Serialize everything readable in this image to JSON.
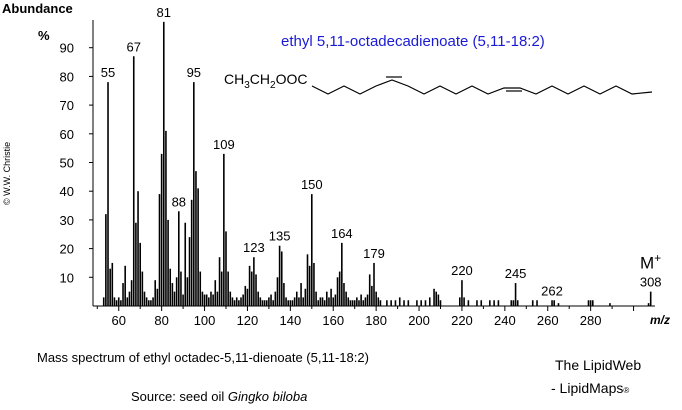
{
  "chart_data": {
    "type": "bar",
    "title": "ethyl 5,11-octadecadienoate  (5,11-18:2)",
    "structure_formula": "CH3CH2OOC",
    "ylabel": "Abundance",
    "yunit": "%",
    "xlabel": "m/z",
    "xlim": [
      48,
      310
    ],
    "ylim": [
      0,
      100
    ],
    "xticks": [
      60,
      80,
      100,
      120,
      140,
      160,
      180,
      200,
      220,
      240,
      260,
      280
    ],
    "yticks": [
      10,
      20,
      30,
      40,
      50,
      60,
      70,
      80,
      90
    ],
    "molecular_ion_label": "M",
    "molecular_ion_sup": "+",
    "labeled_peaks": [
      {
        "mz": 55,
        "value": 78,
        "label": "55"
      },
      {
        "mz": 67,
        "value": 87,
        "label": "67"
      },
      {
        "mz": 81,
        "value": 99,
        "label": "81"
      },
      {
        "mz": 88,
        "value": 33,
        "label": "88"
      },
      {
        "mz": 95,
        "value": 78,
        "label": "95"
      },
      {
        "mz": 109,
        "value": 53,
        "label": "109"
      },
      {
        "mz": 123,
        "value": 17,
        "label": "123"
      },
      {
        "mz": 135,
        "value": 21,
        "label": "135"
      },
      {
        "mz": 150,
        "value": 39,
        "label": "150"
      },
      {
        "mz": 164,
        "value": 22,
        "label": "164"
      },
      {
        "mz": 179,
        "value": 15,
        "label": "179"
      },
      {
        "mz": 220,
        "value": 9,
        "label": "220"
      },
      {
        "mz": 245,
        "value": 8,
        "label": "245"
      },
      {
        "mz": 262,
        "value": 2,
        "label": "262"
      },
      {
        "mz": 308,
        "value": 5,
        "label": "308"
      }
    ],
    "peaks": [
      [
        53,
        3
      ],
      [
        54,
        32
      ],
      [
        56,
        13
      ],
      [
        57,
        15
      ],
      [
        58,
        3
      ],
      [
        59,
        2
      ],
      [
        60,
        3
      ],
      [
        61,
        2
      ],
      [
        62,
        8
      ],
      [
        63,
        14
      ],
      [
        64,
        3
      ],
      [
        65,
        5
      ],
      [
        66,
        9
      ],
      [
        68,
        29
      ],
      [
        69,
        40
      ],
      [
        70,
        22
      ],
      [
        71,
        12
      ],
      [
        72,
        5
      ],
      [
        73,
        3
      ],
      [
        74,
        2
      ],
      [
        75,
        2
      ],
      [
        76,
        3
      ],
      [
        77,
        9
      ],
      [
        78,
        6
      ],
      [
        79,
        39
      ],
      [
        80,
        53
      ],
      [
        82,
        61
      ],
      [
        83,
        30
      ],
      [
        84,
        13
      ],
      [
        85,
        8
      ],
      [
        86,
        5
      ],
      [
        87,
        10
      ],
      [
        89,
        12
      ],
      [
        90,
        4
      ],
      [
        91,
        29
      ],
      [
        92,
        10
      ],
      [
        93,
        24
      ],
      [
        94,
        37
      ],
      [
        96,
        47
      ],
      [
        97,
        41
      ],
      [
        98,
        12
      ],
      [
        99,
        5
      ],
      [
        100,
        4
      ],
      [
        101,
        4
      ],
      [
        102,
        3
      ],
      [
        103,
        5
      ],
      [
        104,
        4
      ],
      [
        105,
        9
      ],
      [
        106,
        5
      ],
      [
        107,
        17
      ],
      [
        108,
        12
      ],
      [
        110,
        26
      ],
      [
        111,
        12
      ],
      [
        112,
        5
      ],
      [
        113,
        3
      ],
      [
        114,
        2
      ],
      [
        115,
        3
      ],
      [
        116,
        2
      ],
      [
        117,
        3
      ],
      [
        118,
        4
      ],
      [
        119,
        7
      ],
      [
        120,
        6
      ],
      [
        121,
        14
      ],
      [
        122,
        12
      ],
      [
        124,
        11
      ],
      [
        125,
        5
      ],
      [
        126,
        3
      ],
      [
        127,
        2
      ],
      [
        128,
        2
      ],
      [
        129,
        2
      ],
      [
        130,
        3
      ],
      [
        131,
        4
      ],
      [
        132,
        2
      ],
      [
        133,
        5
      ],
      [
        134,
        10
      ],
      [
        136,
        19
      ],
      [
        137,
        8
      ],
      [
        138,
        3
      ],
      [
        139,
        2
      ],
      [
        140,
        2
      ],
      [
        141,
        2
      ],
      [
        142,
        3
      ],
      [
        143,
        5
      ],
      [
        144,
        3
      ],
      [
        145,
        8
      ],
      [
        146,
        3
      ],
      [
        147,
        6
      ],
      [
        148,
        18
      ],
      [
        149,
        14
      ],
      [
        151,
        15
      ],
      [
        152,
        5
      ],
      [
        153,
        2
      ],
      [
        154,
        3
      ],
      [
        155,
        3
      ],
      [
        156,
        2
      ],
      [
        157,
        5
      ],
      [
        158,
        3
      ],
      [
        159,
        6
      ],
      [
        160,
        3
      ],
      [
        161,
        4
      ],
      [
        162,
        10
      ],
      [
        163,
        12
      ],
      [
        165,
        8
      ],
      [
        166,
        5
      ],
      [
        167,
        3
      ],
      [
        168,
        2
      ],
      [
        169,
        2
      ],
      [
        170,
        2
      ],
      [
        171,
        3
      ],
      [
        172,
        2
      ],
      [
        173,
        4
      ],
      [
        174,
        2
      ],
      [
        175,
        3
      ],
      [
        176,
        4
      ],
      [
        177,
        11
      ],
      [
        178,
        7
      ],
      [
        180,
        5
      ],
      [
        181,
        3
      ],
      [
        182,
        2
      ],
      [
        185,
        2
      ],
      [
        187,
        2
      ],
      [
        189,
        2
      ],
      [
        191,
        3
      ],
      [
        193,
        2
      ],
      [
        195,
        2
      ],
      [
        199,
        2
      ],
      [
        201,
        2
      ],
      [
        203,
        2
      ],
      [
        205,
        3
      ],
      [
        207,
        6
      ],
      [
        208,
        5
      ],
      [
        209,
        4
      ],
      [
        210,
        2
      ],
      [
        219,
        3
      ],
      [
        221,
        3
      ],
      [
        223,
        2
      ],
      [
        227,
        2
      ],
      [
        229,
        2
      ],
      [
        233,
        2
      ],
      [
        235,
        2
      ],
      [
        237,
        2
      ],
      [
        243,
        2
      ],
      [
        244,
        2
      ],
      [
        246,
        2
      ],
      [
        253,
        2
      ],
      [
        255,
        2
      ],
      [
        263,
        2
      ],
      [
        265,
        1
      ],
      [
        279,
        2
      ],
      [
        280,
        2
      ],
      [
        281,
        2
      ],
      [
        289,
        1
      ],
      [
        307,
        1
      ]
    ]
  },
  "caption": "Mass spectrum of ethyl octadec-5,11-dienoate (5,11-18:2)",
  "source_prefix": "Source: seed oil ",
  "source_species": "Gingko biloba",
  "copyright": "© W.W. Christie",
  "brand_line1": "The LipidWeb",
  "brand_line2": "- LipidMaps",
  "brand_mark": "®"
}
